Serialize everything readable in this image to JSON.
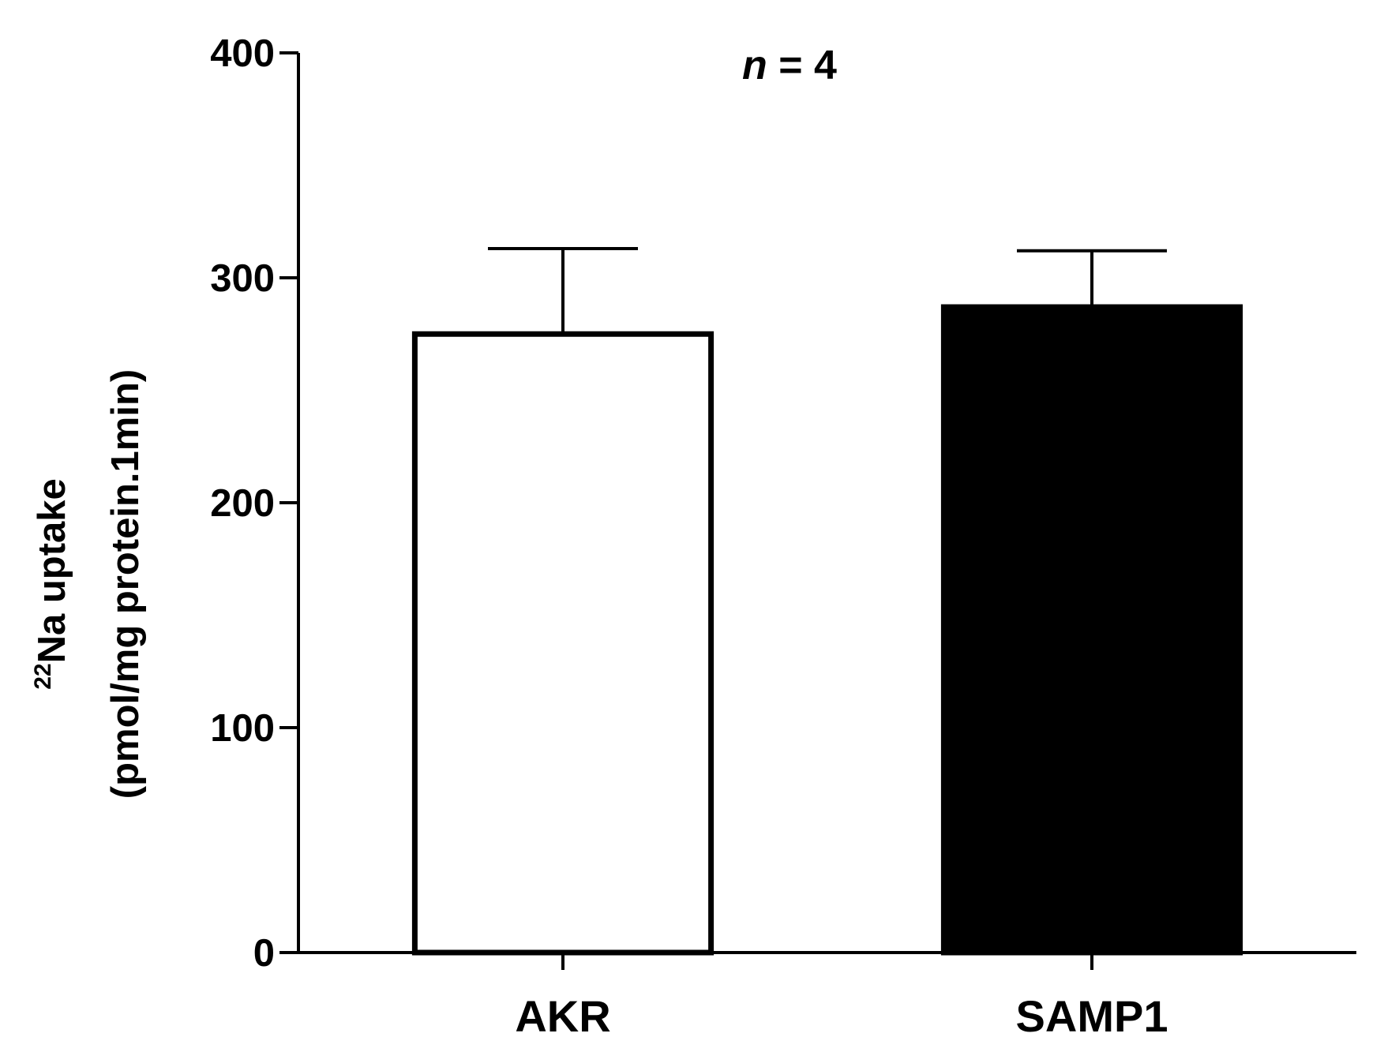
{
  "chart_data": {
    "type": "bar",
    "annotation": {
      "italic_part": "n",
      "rest": " = 4"
    },
    "categories": [
      "AKR",
      "SAMP1"
    ],
    "values": [
      275,
      287
    ],
    "errors": [
      38,
      25
    ],
    "bar_fill_colors": [
      "#ffffff",
      "#000000"
    ],
    "bar_stroke_color": "#000000",
    "ylabel": {
      "superscript": "22",
      "main": "Na uptake",
      "line2": "(pmol/mg protein.1min)"
    },
    "ylim": [
      0,
      400
    ],
    "yticks": [
      0,
      100,
      200,
      300,
      400
    ],
    "ytick_labels": [
      "0",
      "100",
      "200",
      "300",
      "400"
    ],
    "grid": false,
    "legend": "none"
  }
}
